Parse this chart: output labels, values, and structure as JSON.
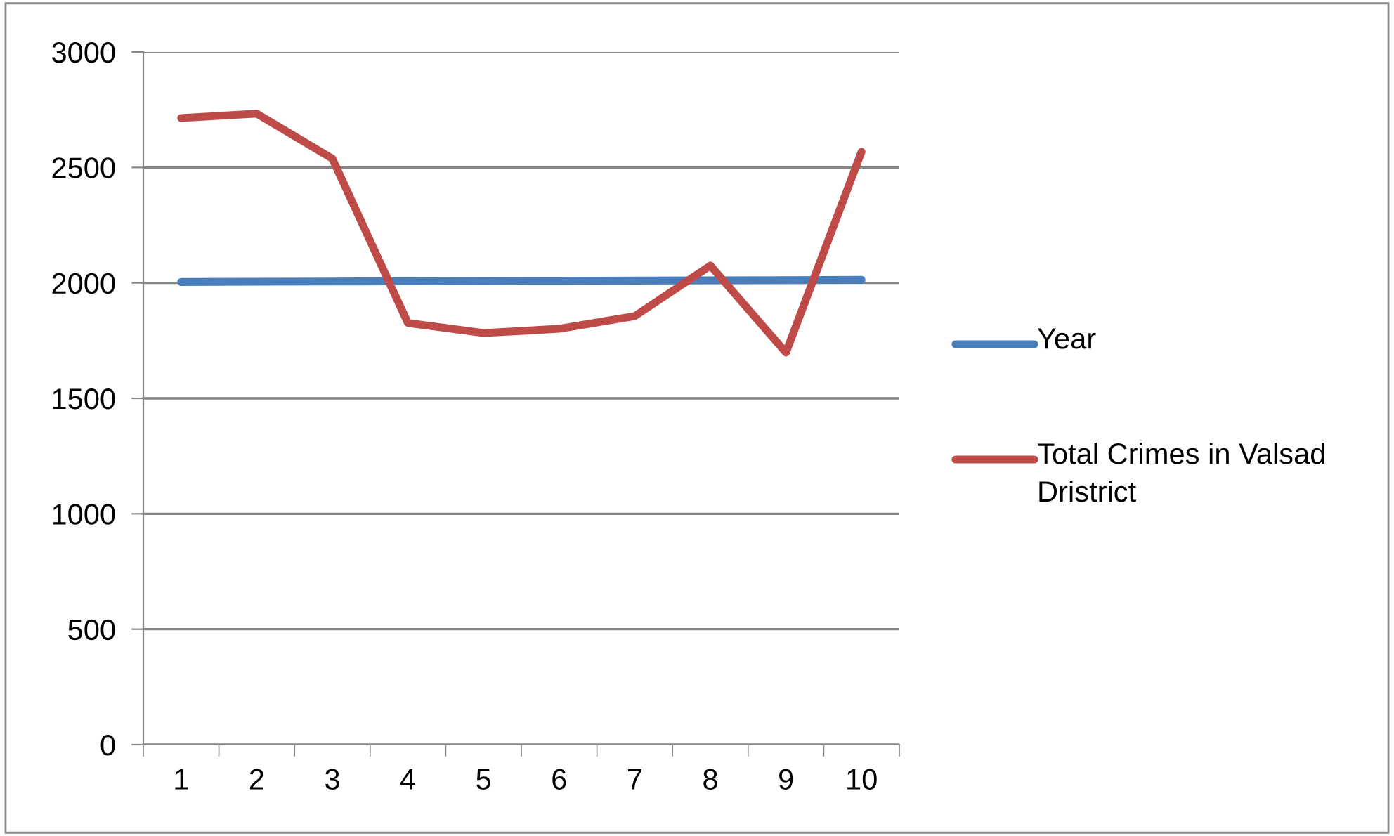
{
  "chart_data": {
    "type": "line",
    "categories": [
      "1",
      "2",
      "3",
      "4",
      "5",
      "6",
      "7",
      "8",
      "9",
      "10"
    ],
    "series": [
      {
        "name": "Year",
        "color": "#4a7ebb",
        "values": [
          2004,
          2005,
          2006,
          2007,
          2008,
          2009,
          2010,
          2011,
          2012,
          2013
        ]
      },
      {
        "name": "Total Crimes in Valsad Dristrict",
        "color": "#be4b48",
        "values": [
          2714,
          2733,
          2538,
          1826,
          1783,
          1801,
          1856,
          2075,
          1698,
          2568
        ]
      }
    ],
    "ylim": [
      0,
      3000
    ],
    "yticks": [
      0,
      500,
      1000,
      1500,
      2000,
      2500,
      3000
    ],
    "grid": "y",
    "legend": "right",
    "marker": "none",
    "line_style": "solid"
  }
}
